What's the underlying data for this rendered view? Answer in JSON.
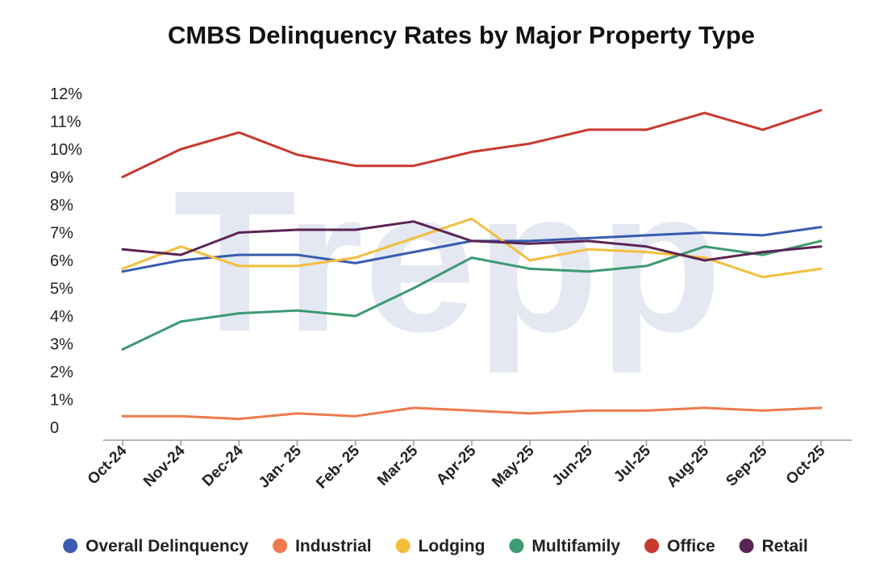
{
  "chart_data": {
    "type": "line",
    "title": "CMBS Delinquency Rates by Major Property Type",
    "watermark": "Trepp",
    "xlabel": "",
    "ylabel": "",
    "categories": [
      "Oct-24",
      "Nov-24",
      "Dec-24",
      "Jan- 25",
      "Feb- 25",
      "Mar-25",
      "Apr-25",
      "May-25",
      "Jun-25",
      "Jul-25",
      "Aug-25",
      "Sep-25",
      "Oct-25"
    ],
    "ylim": [
      0,
      12
    ],
    "yticks": [
      0,
      1,
      2,
      3,
      4,
      5,
      6,
      7,
      8,
      9,
      10,
      11,
      12
    ],
    "ytick_labels": [
      "0",
      "1%",
      "2%",
      "3%",
      "4%",
      "5%",
      "6%",
      "7%",
      "8%",
      "9%",
      "10%",
      "11%",
      "12%"
    ],
    "grid": false,
    "legend_position": "bottom",
    "series": [
      {
        "name": "Overall Delinquency",
        "color": "#3a5bb0",
        "values": [
          5.6,
          6.0,
          6.2,
          6.2,
          5.9,
          6.3,
          6.7,
          6.7,
          6.8,
          6.9,
          7.0,
          6.9,
          7.2
        ]
      },
      {
        "name": "Industrial",
        "color": "#ee7a4d",
        "values": [
          0.4,
          0.4,
          0.3,
          0.5,
          0.4,
          0.7,
          0.6,
          0.5,
          0.6,
          0.6,
          0.7,
          0.6,
          0.7
        ]
      },
      {
        "name": "Lodging",
        "color": "#f4be3c",
        "values": [
          5.7,
          6.5,
          5.8,
          5.8,
          6.1,
          6.8,
          7.5,
          6.0,
          6.4,
          6.3,
          6.1,
          5.4,
          5.7
        ]
      },
      {
        "name": "Multifamily",
        "color": "#3d9a72",
        "values": [
          2.8,
          3.8,
          4.1,
          4.2,
          4.0,
          5.0,
          6.1,
          5.7,
          5.6,
          5.8,
          6.5,
          6.2,
          6.7
        ]
      },
      {
        "name": "Office",
        "color": "#c8392e",
        "values": [
          9.0,
          10.0,
          10.6,
          9.8,
          9.4,
          9.4,
          9.9,
          10.2,
          10.7,
          10.7,
          11.3,
          10.7,
          11.4
        ]
      },
      {
        "name": "Retail",
        "color": "#5b2454",
        "values": [
          6.4,
          6.2,
          7.0,
          7.1,
          7.1,
          7.4,
          6.7,
          6.6,
          6.7,
          6.5,
          6.0,
          6.3,
          6.5
        ]
      }
    ]
  }
}
